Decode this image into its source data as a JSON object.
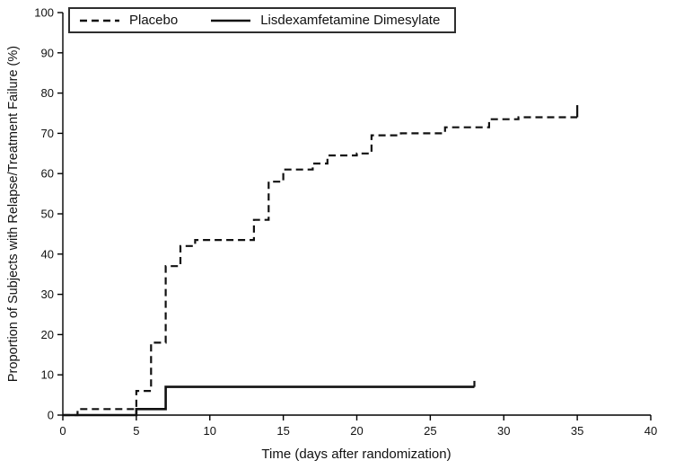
{
  "chart_data": {
    "type": "line",
    "subtype": "step",
    "title": "",
    "xlabel": "Time (days after randomization)",
    "ylabel": "Proportion of Subjects with Relapse/Treatment Failure (%)",
    "xlim": [
      0,
      40
    ],
    "ylim": [
      0,
      100
    ],
    "xticks": [
      0,
      5,
      10,
      15,
      20,
      25,
      30,
      35,
      40
    ],
    "yticks": [
      0,
      10,
      20,
      30,
      40,
      50,
      60,
      70,
      80,
      90,
      100
    ],
    "grid": false,
    "legend_position": "top-left-inside",
    "line_color": "#111111",
    "series": [
      {
        "name": "Placebo",
        "line_style": "dashed",
        "color": "#111111",
        "points": [
          [
            0,
            0
          ],
          [
            1,
            1.5
          ],
          [
            5,
            6
          ],
          [
            6,
            18
          ],
          [
            7,
            37
          ],
          [
            8,
            42
          ],
          [
            9,
            43.5
          ],
          [
            13,
            48.5
          ],
          [
            14,
            58
          ],
          [
            15,
            61
          ],
          [
            17,
            62.5
          ],
          [
            18,
            64.5
          ],
          [
            20,
            65
          ],
          [
            21,
            69.5
          ],
          [
            23,
            70
          ],
          [
            26,
            71.5
          ],
          [
            29,
            73.5
          ],
          [
            31,
            74
          ]
        ],
        "last_x": 35,
        "censor_tick": [
          35,
          77
        ]
      },
      {
        "name": "Lisdexamfetamine Dimesylate",
        "line_style": "solid",
        "color": "#111111",
        "points": [
          [
            0,
            0
          ],
          [
            5,
            1.5
          ],
          [
            7,
            7
          ]
        ],
        "last_x": 28,
        "censor_tick": [
          28,
          8.5
        ]
      }
    ]
  }
}
